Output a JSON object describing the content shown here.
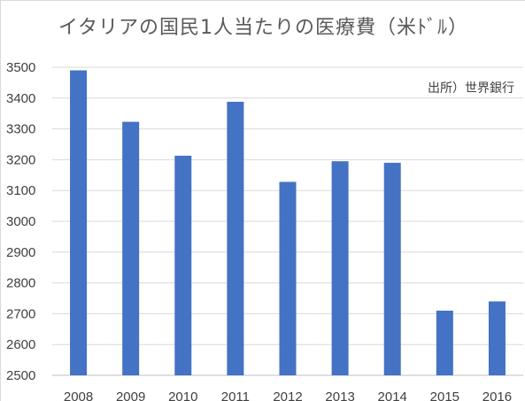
{
  "chart_data": {
    "type": "bar",
    "title": "イタリアの国民1人当たりの医療費（米ﾄﾞﾙ）",
    "source": "出所）世界銀行",
    "categories": [
      "2008",
      "2009",
      "2010",
      "2011",
      "2012",
      "2013",
      "2014",
      "2015",
      "2016"
    ],
    "values": [
      3490,
      3323,
      3213,
      3388,
      3128,
      3195,
      3190,
      2710,
      2740
    ],
    "ylim": [
      2500,
      3500
    ],
    "yticks": [
      "2500",
      "2600",
      "2700",
      "2800",
      "2900",
      "3000",
      "3100",
      "3200",
      "3300",
      "3400",
      "3500"
    ],
    "grid": true,
    "bar_color": "#4472C4"
  }
}
